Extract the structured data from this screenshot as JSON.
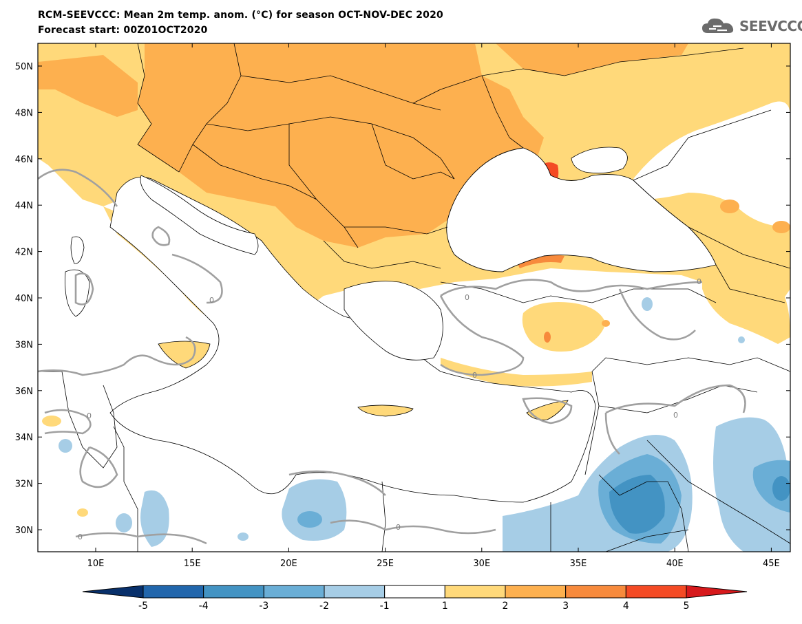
{
  "header": {
    "title_line1": "RCM-SEEVCCC: Mean 2m temp. anom. (°C) for season OCT-NOV-DEC 2020",
    "title_line2": "Forecast start: 00Z01OCT2020",
    "logo_text": "SEEVCCC"
  },
  "map": {
    "lat_labels": [
      "50N",
      "48N",
      "46N",
      "44N",
      "42N",
      "40N",
      "38N",
      "36N",
      "34N",
      "32N",
      "30N"
    ],
    "lon_labels": [
      "10E",
      "15E",
      "20E",
      "25E",
      "30E",
      "35E",
      "40E",
      "45E"
    ],
    "contour_zero_label": "0"
  },
  "colorbar": {
    "labels": [
      "-5",
      "-4",
      "-3",
      "-2",
      "-1",
      "1",
      "2",
      "3",
      "4",
      "5"
    ],
    "colors": [
      "#08306b",
      "#2166ac",
      "#4393c3",
      "#6aaed6",
      "#a6cde6",
      "#ffffff",
      "#ffd97a",
      "#fdb04f",
      "#f78a3c",
      "#f44a24",
      "#d7191c"
    ]
  }
}
